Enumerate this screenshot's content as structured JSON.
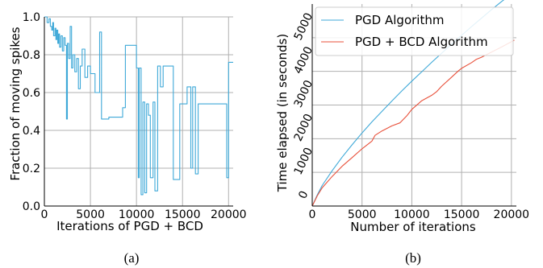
{
  "chart_data": [
    {
      "type": "line",
      "caption": "(a)",
      "xlabel": "Iterations of PGD + BCD",
      "ylabel": "Fraction of moving spikes",
      "xlim": [
        0,
        20500
      ],
      "ylim": [
        0,
        1.0
      ],
      "xticks": [
        0,
        5000,
        10000,
        15000,
        20000
      ],
      "yticks": [
        0.0,
        0.2,
        0.4,
        0.6,
        0.8,
        1.0
      ],
      "ytick_labels": [
        "0.0",
        "0.2",
        "0.4",
        "0.6",
        "0.8",
        "1.0"
      ],
      "grid": true,
      "series": [
        {
          "color": "#3fa9d8",
          "x": [
            0,
            300,
            300,
            500,
            500,
            650,
            650,
            800,
            800,
            900,
            900,
            1000,
            1000,
            1150,
            1150,
            1250,
            1250,
            1350,
            1350,
            1450,
            1450,
            1550,
            1550,
            1650,
            1650,
            1800,
            1800,
            1950,
            1950,
            2100,
            2100,
            2250,
            2250,
            2400,
            2400,
            2500,
            2500,
            2650,
            2650,
            2800,
            2800,
            2950,
            2950,
            3100,
            3100,
            3300,
            3300,
            3500,
            3500,
            3700,
            3700,
            3900,
            3900,
            4100,
            4100,
            4400,
            4400,
            4700,
            4700,
            5000,
            5000,
            5500,
            5500,
            6000,
            6000,
            6200,
            6200,
            6500,
            6500,
            7000,
            7000,
            7800,
            7800,
            8500,
            8500,
            8800,
            8800,
            10000,
            10000,
            10200,
            10200,
            10300,
            10300,
            10500,
            10500,
            10700,
            10700,
            10900,
            10900,
            11100,
            11100,
            11300,
            11300,
            11500,
            11500,
            11800,
            11800,
            12000,
            12000,
            12300,
            12300,
            12600,
            12600,
            12900,
            12900,
            13200,
            13200,
            14000,
            14000,
            14700,
            14700,
            15500,
            15500,
            15900,
            15900,
            16100,
            16100,
            16400,
            16400,
            16700,
            16700,
            17000,
            17000,
            19800,
            19800,
            20000,
            20000,
            20500
          ],
          "y": [
            1.0,
            1.0,
            0.97,
            0.97,
            0.99,
            0.99,
            0.95,
            0.95,
            0.93,
            0.93,
            0.97,
            0.97,
            0.9,
            0.9,
            0.94,
            0.94,
            0.88,
            0.88,
            0.93,
            0.93,
            0.86,
            0.86,
            0.91,
            0.91,
            0.84,
            0.84,
            0.9,
            0.9,
            0.82,
            0.82,
            0.89,
            0.89,
            0.85,
            0.85,
            0.46,
            0.46,
            0.86,
            0.86,
            0.78,
            0.78,
            0.95,
            0.95,
            0.73,
            0.73,
            0.8,
            0.8,
            0.71,
            0.71,
            0.78,
            0.78,
            0.62,
            0.62,
            0.74,
            0.74,
            0.83,
            0.83,
            0.68,
            0.68,
            0.74,
            0.74,
            0.7,
            0.7,
            0.6,
            0.6,
            0.92,
            0.92,
            0.46,
            0.46,
            0.46,
            0.46,
            0.47,
            0.47,
            0.47,
            0.47,
            0.52,
            0.52,
            0.85,
            0.85,
            0.73,
            0.73,
            0.15,
            0.15,
            0.73,
            0.73,
            0.06,
            0.06,
            0.55,
            0.55,
            0.07,
            0.07,
            0.54,
            0.54,
            0.48,
            0.48,
            0.15,
            0.15,
            0.55,
            0.55,
            0.08,
            0.08,
            0.74,
            0.74,
            0.63,
            0.63,
            0.74,
            0.74,
            0.74,
            0.74,
            0.14,
            0.14,
            0.54,
            0.54,
            0.63,
            0.63,
            0.2,
            0.2,
            0.63,
            0.63,
            0.17,
            0.17,
            0.54,
            0.54,
            0.54,
            0.54,
            0.15,
            0.15,
            0.76,
            0.76
          ]
        }
      ]
    },
    {
      "type": "line",
      "caption": "(b)",
      "xlabel": "Number of iterations",
      "ylabel": "Time elapsed (in seconds)",
      "xlim": [
        0,
        20500
      ],
      "ylim": [
        0,
        6000
      ],
      "xticks": [
        0,
        5000,
        10000,
        15000,
        20000
      ],
      "yticks": [
        0,
        1000,
        2000,
        3000,
        4000,
        5000
      ],
      "grid": true,
      "legend_position": "top-left",
      "series": [
        {
          "name": "PGD Algorithm",
          "color": "#3fa9d8",
          "x": [
            0,
            500,
            1000,
            2000,
            3000,
            4000,
            5000,
            6000,
            7000,
            8000,
            9000,
            10000,
            11000,
            12000,
            13000,
            14000,
            15000,
            16000,
            17000,
            18000,
            19000,
            20000,
            20300
          ],
          "y": [
            0,
            330,
            610,
            1050,
            1450,
            1820,
            2170,
            2500,
            2810,
            3120,
            3420,
            3710,
            3990,
            4270,
            4540,
            4810,
            5070,
            5330,
            5580,
            5830,
            6070,
            6300,
            6370
          ]
        },
        {
          "name": "PGD + BCD Algorithm",
          "color": "#e8503a",
          "x": [
            0,
            500,
            1000,
            2000,
            3000,
            4000,
            5000,
            6000,
            6300,
            7000,
            8000,
            8800,
            9500,
            10000,
            11000,
            12000,
            12500,
            13000,
            14000,
            14700,
            15000,
            16000,
            16500,
            17000,
            18000,
            19000,
            20000,
            20300
          ],
          "y": [
            0,
            300,
            540,
            880,
            1180,
            1440,
            1700,
            1930,
            2100,
            2230,
            2380,
            2470,
            2680,
            2870,
            3130,
            3290,
            3400,
            3560,
            3830,
            4020,
            4090,
            4260,
            4360,
            4420,
            4570,
            4720,
            4880,
            4930
          ]
        }
      ]
    }
  ]
}
